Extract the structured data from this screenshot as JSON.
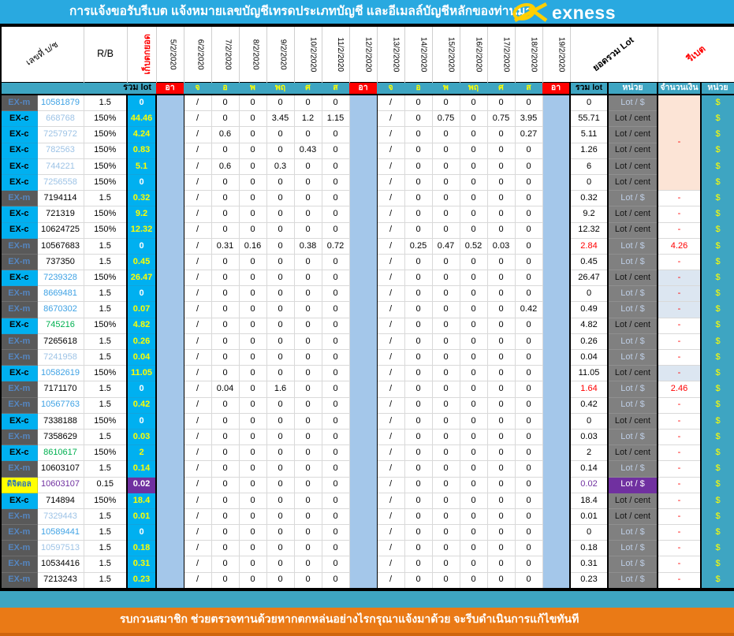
{
  "title": "การแจ้งขอรับรีเบต  แจ้งหมายเลขบัญชีเทรดประเภทบัญชี และอีเมลล์บัญชีหลักของท่านมา",
  "logo": {
    "brand": "exness"
  },
  "header": {
    "account_col": "เลขที่ บ/ช",
    "rb_col": "R/B",
    "carry_col": "เก็บตกยอด",
    "dates": [
      "5/2/2020",
      "6/2/2020",
      "7/2/2020",
      "8/2/2020",
      "9/2/2020",
      "10/2/2020",
      "11/2/2020",
      "12/2/2020",
      "13/2/2020",
      "14/2/2020",
      "15/2/2020",
      "16/2/2020",
      "17/2/2020",
      "18/2/2020",
      "19/2/2020"
    ],
    "total_col": "ยอดรวม Lot",
    "rebate_col": "รีเบต"
  },
  "day_row": {
    "sum_label": "รวม lot",
    "days": [
      "อา",
      "จ",
      "อ",
      "พ",
      "พฤ",
      "ศ",
      "ส",
      "อา",
      "จ",
      "อ",
      "พ",
      "พฤ",
      "ศ",
      "ส",
      "อา"
    ],
    "total_label": "รวม lot",
    "unit_label": "หน่วย",
    "amount_label": "จำนวนเงิน",
    "unit2_label": "หน่วย"
  },
  "currency": "$",
  "default_week": [
    "/",
    "0",
    "0",
    "0",
    "0",
    "0"
  ],
  "merged_amount": {
    "rows": 6,
    "value": "-"
  },
  "rows": [
    {
      "t": "EX-m",
      "ts": "m",
      "acc": "10581879",
      "ac": "blue",
      "rb": "1.5",
      "c": "0",
      "cs": "zero",
      "tot": "0",
      "totc": "",
      "u": "Lot / $",
      "us": "light"
    },
    {
      "t": "EX-c",
      "ts": "c",
      "acc": "668768",
      "ac": "pale",
      "rb": "150%",
      "c": "44.46",
      "cs": "val",
      "w1": [
        "/",
        "0",
        "0",
        "3.45",
        "1.2",
        "1.15"
      ],
      "w2": [
        "/",
        "0",
        "0.75",
        "0",
        "0.75",
        "3.95"
      ],
      "tot": "55.71",
      "totc": "",
      "u": "Lot / cent",
      "us": "dark"
    },
    {
      "t": "EX-c",
      "ts": "c",
      "acc": "7257972",
      "ac": "pale",
      "rb": "150%",
      "c": "4.24",
      "cs": "val",
      "w1": [
        "/",
        "0.6",
        "0",
        "0",
        "0",
        "0"
      ],
      "w2": [
        "/",
        "0",
        "0",
        "0",
        "0",
        "0.27"
      ],
      "tot": "5.11",
      "totc": "",
      "u": "Lot / cent",
      "us": "dark"
    },
    {
      "t": "EX-c",
      "ts": "c",
      "acc": "782563",
      "ac": "pale",
      "rb": "150%",
      "c": "0.83",
      "cs": "val",
      "w1": [
        "/",
        "0",
        "0",
        "0",
        "0.43",
        "0"
      ],
      "tot": "1.26",
      "totc": "",
      "u": "Lot / cent",
      "us": "dark"
    },
    {
      "t": "EX-c",
      "ts": "c",
      "acc": "744221",
      "ac": "pale",
      "rb": "150%",
      "c": "5.1",
      "cs": "val",
      "w1": [
        "/",
        "0.6",
        "0",
        "0.3",
        "0",
        "0"
      ],
      "tot": "6",
      "totc": "",
      "u": "Lot / cent",
      "us": "dark"
    },
    {
      "t": "EX-c",
      "ts": "c",
      "acc": "7256558",
      "ac": "pale",
      "rb": "150%",
      "c": "0",
      "cs": "zero",
      "tot": "0",
      "totc": "",
      "u": "Lot / cent",
      "us": "dark"
    },
    {
      "t": "EX-m",
      "ts": "m",
      "acc": "7194114",
      "ac": "black",
      "rb": "1.5",
      "c": "0.32",
      "cs": "val",
      "tot": "0.32",
      "totc": "",
      "u": "Lot / $",
      "us": "light",
      "amt": "-"
    },
    {
      "t": "EX-c",
      "ts": "c",
      "acc": "721319",
      "ac": "black",
      "rb": "150%",
      "c": "9.2",
      "cs": "val",
      "tot": "9.2",
      "totc": "",
      "u": "Lot / cent",
      "us": "dark",
      "amt": "-"
    },
    {
      "t": "EX-c",
      "ts": "c",
      "acc": "10624725",
      "ac": "black",
      "rb": "150%",
      "c": "12.32",
      "cs": "val",
      "tot": "12.32",
      "totc": "",
      "u": "Lot / cent",
      "us": "dark",
      "amt": "-"
    },
    {
      "t": "EX-m",
      "ts": "m",
      "acc": "10567683",
      "ac": "black",
      "rb": "1.5",
      "c": "0",
      "cs": "zero",
      "w1": [
        "/",
        "0.31",
        "0.16",
        "0",
        "0.38",
        "0.72"
      ],
      "w2": [
        "/",
        "0.25",
        "0.47",
        "0.52",
        "0.03",
        "0"
      ],
      "tot": "2.84",
      "totc": "red",
      "u": "Lot / $",
      "us": "light",
      "amt": "4.26"
    },
    {
      "t": "EX-m",
      "ts": "m",
      "acc": "737350",
      "ac": "black",
      "rb": "1.5",
      "c": "0.45",
      "cs": "val",
      "tot": "0.45",
      "totc": "",
      "u": "Lot / $",
      "us": "light",
      "amt": "-"
    },
    {
      "t": "EX-c",
      "ts": "c",
      "acc": "7239328",
      "ac": "blue",
      "rb": "150%",
      "c": "26.47",
      "cs": "val",
      "tot": "26.47",
      "totc": "",
      "u": "Lot / cent",
      "us": "dark",
      "amt": "-",
      "amtbg": "alt"
    },
    {
      "t": "EX-m",
      "ts": "m",
      "acc": "8669481",
      "ac": "blue",
      "rb": "1.5",
      "c": "0",
      "cs": "zero",
      "tot": "0",
      "totc": "",
      "u": "Lot / $",
      "us": "light",
      "amt": "-",
      "amtbg": "alt"
    },
    {
      "t": "EX-m",
      "ts": "m",
      "acc": "8670302",
      "ac": "blue",
      "rb": "1.5",
      "c": "0.07",
      "cs": "val",
      "w2": [
        "/",
        "0",
        "0",
        "0",
        "0",
        "0.42"
      ],
      "tot": "0.49",
      "totc": "",
      "u": "Lot / $",
      "us": "light",
      "amt": "-",
      "amtbg": "alt"
    },
    {
      "t": "EX-c",
      "ts": "c",
      "acc": "745216",
      "ac": "green",
      "rb": "150%",
      "c": "4.82",
      "cs": "val",
      "tot": "4.82",
      "totc": "",
      "u": "Lot / cent",
      "us": "dark",
      "amt": "-"
    },
    {
      "t": "EX-m",
      "ts": "m",
      "acc": "7265618",
      "ac": "black",
      "rb": "1.5",
      "c": "0.26",
      "cs": "val",
      "tot": "0.26",
      "totc": "",
      "u": "Lot / $",
      "us": "light",
      "amt": "-"
    },
    {
      "t": "EX-m",
      "ts": "m",
      "acc": "7241958",
      "ac": "pale",
      "rb": "1.5",
      "c": "0.04",
      "cs": "val",
      "tot": "0.04",
      "totc": "",
      "u": "Lot / $",
      "us": "light",
      "amt": "-"
    },
    {
      "t": "EX-c",
      "ts": "c",
      "acc": "10582619",
      "ac": "blue",
      "rb": "150%",
      "c": "11.05",
      "cs": "val",
      "tot": "11.05",
      "totc": "",
      "u": "Lot / cent",
      "us": "dark",
      "amt": "-",
      "amtbg": "alt"
    },
    {
      "t": "EX-m",
      "ts": "m",
      "acc": "7171170",
      "ac": "black",
      "rb": "1.5",
      "c": "0",
      "cs": "zero",
      "w1": [
        "/",
        "0.04",
        "0",
        "1.6",
        "0",
        "0"
      ],
      "tot": "1.64",
      "totc": "red",
      "u": "Lot / $",
      "us": "light",
      "amt": "2.46"
    },
    {
      "t": "EX-m",
      "ts": "m",
      "acc": "10567763",
      "ac": "blue",
      "rb": "1.5",
      "c": "0.42",
      "cs": "val",
      "tot": "0.42",
      "totc": "",
      "u": "Lot / $",
      "us": "light",
      "amt": "-"
    },
    {
      "t": "EX-c",
      "ts": "c",
      "acc": "7338188",
      "ac": "black",
      "rb": "150%",
      "c": "0",
      "cs": "zero",
      "tot": "0",
      "totc": "",
      "u": "Lot / cent",
      "us": "dark",
      "amt": "-"
    },
    {
      "t": "EX-m",
      "ts": "m",
      "acc": "7358629",
      "ac": "black",
      "rb": "1.5",
      "c": "0.03",
      "cs": "val",
      "tot": "0.03",
      "totc": "",
      "u": "Lot / $",
      "us": "light",
      "amt": "-"
    },
    {
      "t": "EX-c",
      "ts": "c",
      "acc": "8610617",
      "ac": "green",
      "rb": "150%",
      "c": "2",
      "cs": "val",
      "tot": "2",
      "totc": "",
      "u": "Lot / cent",
      "us": "dark",
      "amt": "-"
    },
    {
      "t": "EX-m",
      "ts": "m",
      "acc": "10603107",
      "ac": "black",
      "rb": "1.5",
      "c": "0.14",
      "cs": "val",
      "tot": "0.14",
      "totc": "",
      "u": "Lot / $",
      "us": "light",
      "amt": "-"
    },
    {
      "t": "ดิจิตอล",
      "ts": "d",
      "acc": "10603107",
      "ac": "purple",
      "rb": "0.15",
      "c": "0.02",
      "cs": "purple",
      "tot": "0.02",
      "totc": "purple",
      "u": "Lot / $",
      "us": "purple",
      "amt": "-"
    },
    {
      "t": "EX-c",
      "ts": "c",
      "acc": "714894",
      "ac": "black",
      "rb": "150%",
      "c": "18.4",
      "cs": "val",
      "tot": "18.4",
      "totc": "",
      "u": "Lot / cent",
      "us": "dark",
      "amt": "-"
    },
    {
      "t": "EX-m",
      "ts": "m",
      "acc": "7329443",
      "ac": "pale",
      "rb": "1.5",
      "c": "0.01",
      "cs": "val",
      "tot": "0.01",
      "totc": "",
      "u": "Lot / cent",
      "us": "dark",
      "amt": "-"
    },
    {
      "t": "EX-m",
      "ts": "m",
      "acc": "10589441",
      "ac": "blue",
      "rb": "1.5",
      "c": "0",
      "cs": "zero",
      "tot": "0",
      "totc": "",
      "u": "Lot / $",
      "us": "light",
      "amt": "-"
    },
    {
      "t": "EX-m",
      "ts": "m",
      "acc": "10597513",
      "ac": "pale",
      "rb": "1.5",
      "c": "0.18",
      "cs": "val",
      "tot": "0.18",
      "totc": "",
      "u": "Lot / $",
      "us": "light",
      "amt": "-"
    },
    {
      "t": "EX-m",
      "ts": "m",
      "acc": "10534416",
      "ac": "black",
      "rb": "1.5",
      "c": "0.31",
      "cs": "val",
      "tot": "0.31",
      "totc": "",
      "u": "Lot / $",
      "us": "light",
      "amt": "-"
    },
    {
      "t": "EX-m",
      "ts": "m",
      "acc": "7213243",
      "ac": "black",
      "rb": "1.5",
      "c": "0.23",
      "cs": "val",
      "tot": "0.23",
      "totc": "",
      "u": "Lot / $",
      "us": "light",
      "amt": "-"
    }
  ],
  "footer": {
    "notice": "รบกวนสมาชิก ช่วยตรวจทานด้วยหากตกหล่นอย่างไรกรุณาแจ้งมาด้วย จะรีบดำเนินการแก้ไขทันที"
  },
  "colors": {
    "title_bar": "#29A9E0",
    "teal": "#3EA5C2",
    "red": "#FF0000",
    "cyan": "#00B0F0",
    "weekend_blue": "#A4C7EA",
    "type_gray": "#595959",
    "unit_gray": "#808080",
    "peach": "#FCE4D6",
    "alt_blue": "#DCE6F1",
    "purple": "#7030A0",
    "value_yellow": "#FFFF00",
    "orange": "#EA7A16",
    "green": "#00B050",
    "logo_yellow": "#FFCF01"
  }
}
